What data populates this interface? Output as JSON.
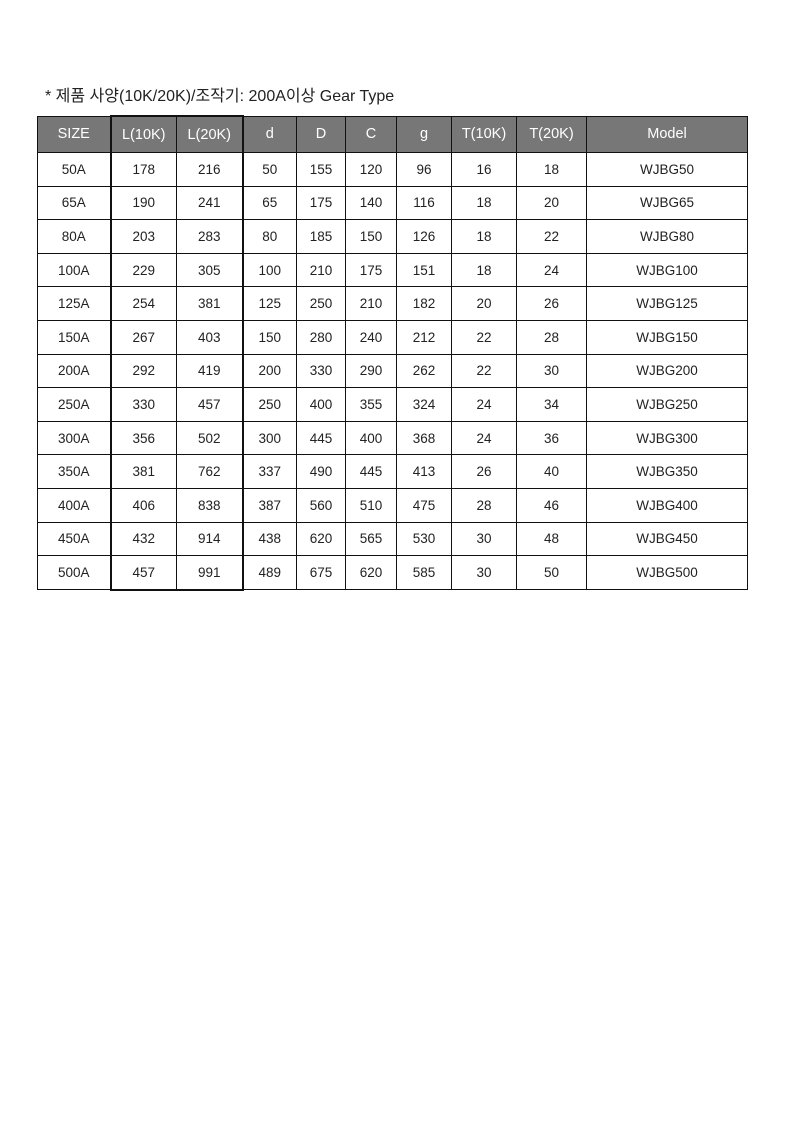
{
  "title": "* 제품 사양(10K/20K)/조작기: 200A이상 Gear Type",
  "table": {
    "headers": [
      "SIZE",
      "L(10K)",
      "L(20K)",
      "d",
      "D",
      "C",
      "g",
      "T(10K)",
      "T(20K)",
      "Model"
    ],
    "rows": [
      [
        "50A",
        "178",
        "216",
        "50",
        "155",
        "120",
        "96",
        "16",
        "18",
        "WJBG50"
      ],
      [
        "65A",
        "190",
        "241",
        "65",
        "175",
        "140",
        "116",
        "18",
        "20",
        "WJBG65"
      ],
      [
        "80A",
        "203",
        "283",
        "80",
        "185",
        "150",
        "126",
        "18",
        "22",
        "WJBG80"
      ],
      [
        "100A",
        "229",
        "305",
        "100",
        "210",
        "175",
        "151",
        "18",
        "24",
        "WJBG100"
      ],
      [
        "125A",
        "254",
        "381",
        "125",
        "250",
        "210",
        "182",
        "20",
        "26",
        "WJBG125"
      ],
      [
        "150A",
        "267",
        "403",
        "150",
        "280",
        "240",
        "212",
        "22",
        "28",
        "WJBG150"
      ],
      [
        "200A",
        "292",
        "419",
        "200",
        "330",
        "290",
        "262",
        "22",
        "30",
        "WJBG200"
      ],
      [
        "250A",
        "330",
        "457",
        "250",
        "400",
        "355",
        "324",
        "24",
        "34",
        "WJBG250"
      ],
      [
        "300A",
        "356",
        "502",
        "300",
        "445",
        "400",
        "368",
        "24",
        "36",
        "WJBG300"
      ],
      [
        "350A",
        "381",
        "762",
        "337",
        "490",
        "445",
        "413",
        "26",
        "40",
        "WJBG350"
      ],
      [
        "400A",
        "406",
        "838",
        "387",
        "560",
        "510",
        "475",
        "28",
        "46",
        "WJBG400"
      ],
      [
        "450A",
        "432",
        "914",
        "438",
        "620",
        "565",
        "530",
        "30",
        "48",
        "WJBG450"
      ],
      [
        "500A",
        "457",
        "991",
        "489",
        "675",
        "620",
        "585",
        "30",
        "50",
        "WJBG500"
      ]
    ]
  }
}
